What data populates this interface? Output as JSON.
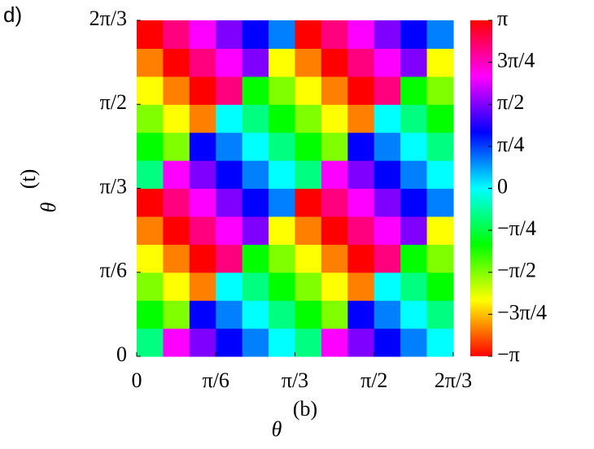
{
  "panel_label": "d)",
  "chart_data": {
    "type": "heatmap",
    "colormap": "hsv",
    "xlabel": {
      "symbol": "θ",
      "superscript": "(b)"
    },
    "ylabel": {
      "symbol": "θ",
      "superscript": "(t)"
    },
    "xlim": [
      0,
      2.0944
    ],
    "ylim": [
      0,
      2.0944
    ],
    "xticks": [
      0,
      {
        "value": 0.5236,
        "label": "π/6"
      },
      {
        "value": 1.0472,
        "label": "π/3"
      },
      {
        "value": 1.5708,
        "label": "π/2"
      },
      {
        "value": 2.0944,
        "label": "2π/3"
      }
    ],
    "yticks": [
      0,
      {
        "value": 0.5236,
        "label": "π/6"
      },
      {
        "value": 1.0472,
        "label": "π/3"
      },
      {
        "value": 1.5708,
        "label": "π/2"
      },
      {
        "value": 2.0944,
        "label": "2π/3"
      }
    ],
    "zlim": [
      -3.1416,
      3.1416
    ],
    "zticks": [
      {
        "value": 3.1416,
        "label": "π"
      },
      {
        "value": 2.3562,
        "label": "3π/4"
      },
      {
        "value": 1.5708,
        "label": "π/2"
      },
      {
        "value": 0.7854,
        "label": "π/4"
      },
      0,
      {
        "value": -0.7854,
        "label": "−π/4"
      },
      {
        "value": -1.5708,
        "label": "−π/2"
      },
      {
        "value": -2.3562,
        "label": "−3π/4"
      },
      {
        "value": -3.1416,
        "label": "−π"
      }
    ],
    "z": [
      [
        -0.52,
        2.09,
        1.57,
        1.05,
        0.52,
        0,
        -0.52,
        2.09,
        1.57,
        1.05,
        0.52,
        0
      ],
      [
        -1.05,
        -1.57,
        1.05,
        0.52,
        0,
        -0.52,
        -1.05,
        -1.57,
        1.05,
        0.52,
        0,
        -0.52
      ],
      [
        -1.57,
        -2.09,
        -2.62,
        0,
        -0.52,
        -1.05,
        -1.57,
        -2.09,
        -2.62,
        0,
        -0.52,
        -1.05
      ],
      [
        -2.09,
        -2.62,
        3.14,
        2.62,
        -1.05,
        -1.57,
        -2.09,
        -2.62,
        3.14,
        2.62,
        -1.05,
        -1.57
      ],
      [
        -2.62,
        3.14,
        2.62,
        2.09,
        1.57,
        -2.09,
        -2.62,
        3.14,
        2.62,
        2.09,
        1.57,
        -2.09
      ],
      [
        3.14,
        2.62,
        2.09,
        1.57,
        1.05,
        0.52,
        3.14,
        2.62,
        2.09,
        1.57,
        1.05,
        0.52
      ],
      [
        -0.52,
        2.09,
        1.57,
        1.05,
        0.52,
        0,
        -0.52,
        2.09,
        1.57,
        1.05,
        0.52,
        0
      ],
      [
        -1.05,
        -1.57,
        1.05,
        0.52,
        0,
        -0.52,
        -1.05,
        -1.57,
        1.05,
        0.52,
        0,
        -0.52
      ],
      [
        -1.57,
        -2.09,
        -2.62,
        0,
        -0.52,
        -1.05,
        -1.57,
        -2.09,
        -2.62,
        0,
        -0.52,
        -1.05
      ],
      [
        -2.09,
        -2.62,
        3.14,
        2.62,
        -1.05,
        -1.57,
        -2.09,
        -2.62,
        3.14,
        2.62,
        -1.05,
        -1.57
      ],
      [
        -2.62,
        3.14,
        2.62,
        2.09,
        1.57,
        -2.09,
        -2.62,
        3.14,
        2.62,
        2.09,
        1.57,
        -2.09
      ],
      [
        3.14,
        2.62,
        2.09,
        1.57,
        1.05,
        0.52,
        3.14,
        2.62,
        2.09,
        1.57,
        1.05,
        0.52
      ]
    ]
  }
}
